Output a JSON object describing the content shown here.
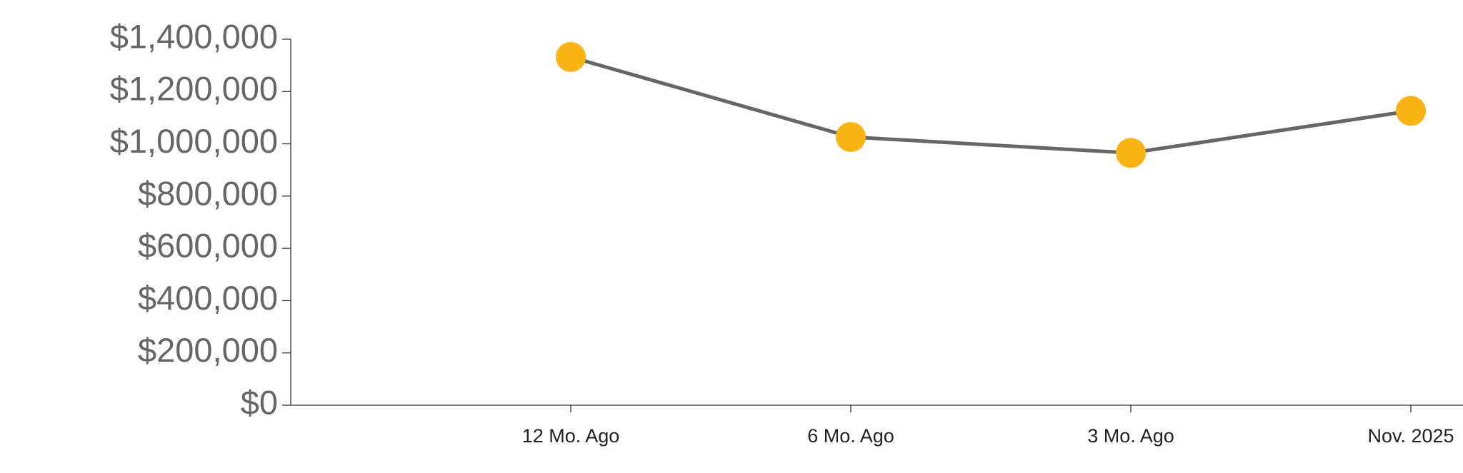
{
  "chart_data": {
    "type": "line",
    "categories": [
      "12 Mo. Ago",
      "6 Mo. Ago",
      "3 Mo. Ago",
      "Nov. 2025"
    ],
    "series": [
      {
        "color": "#fbb416",
        "line_color": "#666666",
        "values": [
          1332000,
          1026000,
          965000,
          1126000
        ]
      }
    ],
    "ylim": [
      0,
      1400000
    ],
    "yticks": [
      {
        "value": 0,
        "label": "$0"
      },
      {
        "value": 200000,
        "label": "$200,000"
      },
      {
        "value": 400000,
        "label": "$400,000"
      },
      {
        "value": 600000,
        "label": "$600,000"
      },
      {
        "value": 800000,
        "label": "$800,000"
      },
      {
        "value": 1000000,
        "label": "$1,000,000"
      },
      {
        "value": 1200000,
        "label": "$1,200,000"
      },
      {
        "value": 1400000,
        "label": "$1,400,000"
      }
    ]
  }
}
